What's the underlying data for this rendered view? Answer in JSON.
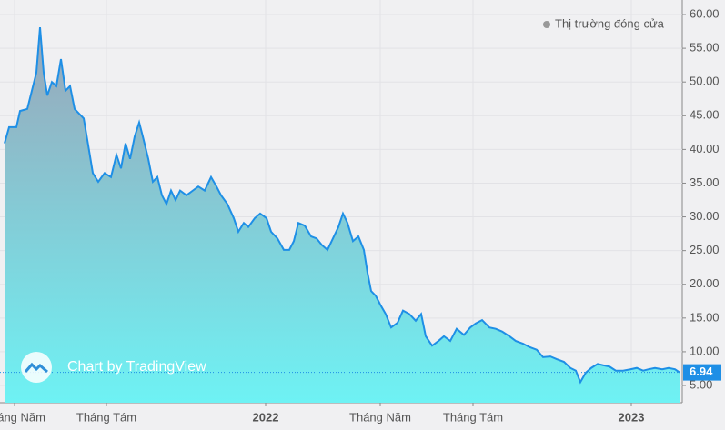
{
  "chart_data": {
    "type": "area",
    "watermark": "Chart by TradingView",
    "xlim": [
      0,
      745
    ],
    "xticks": [
      {
        "value": 11,
        "label": "Tháng Năm"
      },
      {
        "value": 112,
        "label": "Tháng Tám"
      },
      {
        "value": 287,
        "label": "2022"
      },
      {
        "value": 413,
        "label": "Tháng Năm"
      },
      {
        "value": 515,
        "label": "Tháng Tám"
      },
      {
        "value": 689,
        "label": "2023"
      }
    ],
    "ylim": [
      2.44,
      62.16
    ],
    "yticks": [
      {
        "value": 5,
        "label": "5.00"
      },
      {
        "value": 10,
        "label": "10.00"
      },
      {
        "value": 15,
        "label": "15.00"
      },
      {
        "value": 20,
        "label": "20.00"
      },
      {
        "value": 25,
        "label": "25.00"
      },
      {
        "value": 30,
        "label": "30.00"
      },
      {
        "value": 35,
        "label": "35.00"
      },
      {
        "value": 40,
        "label": "40.00"
      },
      {
        "value": 45,
        "label": "45.00"
      },
      {
        "value": 50,
        "label": "50.00"
      },
      {
        "value": 55,
        "label": "55.00"
      },
      {
        "value": 60,
        "label": "60.00"
      }
    ],
    "grid": true,
    "legend": "top-right",
    "x": [
      0,
      5,
      13,
      17,
      25,
      30,
      35,
      39,
      43,
      47,
      52,
      57,
      62,
      67,
      72,
      77,
      82,
      87,
      92,
      97,
      103,
      110,
      117,
      123,
      128,
      133,
      138,
      143,
      148,
      152,
      158,
      163,
      168,
      173,
      178,
      183,
      188,
      193,
      200,
      207,
      213,
      220,
      227,
      233,
      238,
      245,
      252,
      257,
      263,
      268,
      275,
      281,
      288,
      293,
      300,
      307,
      313,
      318,
      323,
      330,
      337,
      343,
      349,
      355,
      361,
      367,
      372,
      377,
      383,
      389,
      395,
      399,
      403,
      408,
      413,
      419,
      425,
      432,
      438,
      445,
      452,
      458,
      463,
      470,
      477,
      483,
      490,
      497,
      505,
      512,
      518,
      525,
      533,
      540,
      547,
      555,
      562,
      570,
      577,
      585,
      592,
      600,
      607,
      615,
      622,
      628,
      633,
      639,
      645,
      652,
      658,
      665,
      672,
      680,
      688,
      695,
      702,
      708,
      715,
      723,
      730,
      737,
      742
    ],
    "series": [
      {
        "name": "Thị trường đóng cửa",
        "color": "#1e8fe6",
        "values": [
          40.9,
          43.3,
          43.3,
          45.7,
          46,
          48.7,
          51.4,
          58.1,
          51.4,
          48,
          50,
          49.4,
          53.4,
          48.7,
          49.4,
          46,
          45.3,
          44.6,
          40.6,
          36.5,
          35.2,
          36.5,
          35.9,
          39.2,
          37.2,
          40.9,
          38.6,
          41.9,
          44,
          41.9,
          38.6,
          35.2,
          35.9,
          33.2,
          31.9,
          33.9,
          32.5,
          33.9,
          33.2,
          33.9,
          34.5,
          33.9,
          35.9,
          34.5,
          33.2,
          31.9,
          29.8,
          27.8,
          29.1,
          28.5,
          29.8,
          30.5,
          29.8,
          27.8,
          26.8,
          25.1,
          25.1,
          26.4,
          29.1,
          28.7,
          27.1,
          26.8,
          25.8,
          25.1,
          26.8,
          28.5,
          30.5,
          29.1,
          26.4,
          27.1,
          25.1,
          21.7,
          19,
          18.3,
          17,
          15.6,
          13.6,
          14.3,
          16.1,
          15.6,
          14.6,
          15.6,
          12.3,
          10.9,
          11.6,
          12.3,
          11.6,
          13.4,
          12.5,
          13.6,
          14.2,
          14.7,
          13.6,
          13.4,
          13,
          12.3,
          11.6,
          11.2,
          10.7,
          10.3,
          9.2,
          9.3,
          8.9,
          8.5,
          7.6,
          7.2,
          5.5,
          6.9,
          7.6,
          8.2,
          8,
          7.8,
          7.2,
          7.2,
          7.4,
          7.6,
          7.2,
          7.4,
          7.6,
          7.4,
          7.6,
          7.4,
          6.94
        ]
      }
    ]
  }
}
